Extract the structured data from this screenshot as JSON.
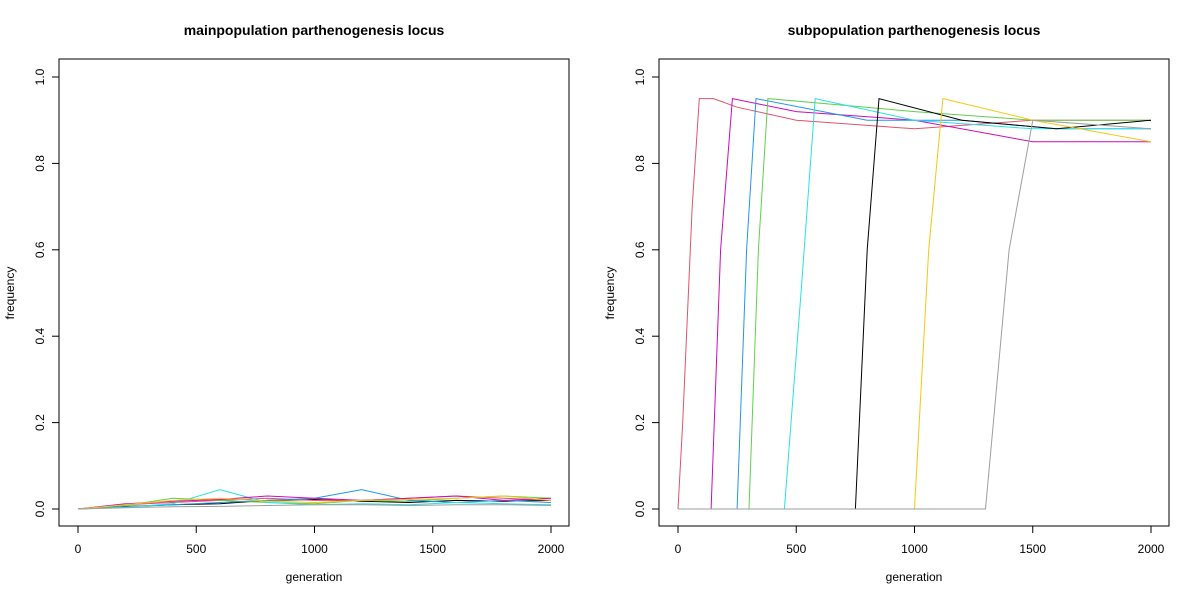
{
  "chart_data": [
    {
      "type": "line",
      "title": "mainpopulation parthenogenesis locus",
      "xlabel": "generation",
      "ylabel": "frequency",
      "xlim": [
        0,
        2000
      ],
      "ylim": [
        0,
        1
      ],
      "xticks": [
        "0",
        "500",
        "1000",
        "1500",
        "2000"
      ],
      "yticks": [
        "0.0",
        "0.2",
        "0.4",
        "0.6",
        "0.8",
        "1.0"
      ],
      "grid": false,
      "legend": "none",
      "series_colors": [
        "#000000",
        "#DF536B",
        "#61D04F",
        "#2297E6",
        "#28E2E5",
        "#CD0BBC",
        "#F5C710",
        "#9E9E9E"
      ],
      "series": [
        {
          "color": "#000000",
          "x": [
            0,
            200,
            400,
            600,
            800,
            1000,
            1200,
            1400,
            1600,
            1800,
            2000
          ],
          "values": [
            0,
            0.006,
            0.01,
            0.012,
            0.02,
            0.022,
            0.018,
            0.015,
            0.02,
            0.018,
            0.02
          ]
        },
        {
          "color": "#DF536B",
          "x": [
            0,
            200,
            400,
            600,
            800,
            1000,
            1200,
            1400,
            1600,
            1800,
            2000
          ],
          "values": [
            0,
            0.01,
            0.015,
            0.02,
            0.025,
            0.02,
            0.02,
            0.025,
            0.03,
            0.025,
            0.02
          ]
        },
        {
          "color": "#61D04F",
          "x": [
            0,
            200,
            400,
            600,
            800,
            1000,
            1200,
            1400,
            1600,
            1800,
            2000
          ],
          "values": [
            0,
            0.008,
            0.025,
            0.02,
            0.015,
            0.012,
            0.02,
            0.018,
            0.025,
            0.03,
            0.025
          ]
        },
        {
          "color": "#2297E6",
          "x": [
            0,
            200,
            400,
            600,
            800,
            1000,
            1200,
            1400,
            1600,
            1800,
            2000
          ],
          "values": [
            0,
            0.005,
            0.01,
            0.015,
            0.02,
            0.025,
            0.045,
            0.02,
            0.015,
            0.02,
            0.015
          ]
        },
        {
          "color": "#28E2E5",
          "x": [
            0,
            200,
            400,
            600,
            800,
            1000,
            1200,
            1400,
            1600,
            1800,
            2000
          ],
          "values": [
            0,
            0.004,
            0.012,
            0.045,
            0.015,
            0.01,
            0.012,
            0.01,
            0.015,
            0.012,
            0.01
          ]
        },
        {
          "color": "#CD0BBC",
          "x": [
            0,
            200,
            400,
            600,
            800,
            1000,
            1200,
            1400,
            1600,
            1800,
            2000
          ],
          "values": [
            0,
            0.012,
            0.018,
            0.022,
            0.03,
            0.025,
            0.02,
            0.025,
            0.03,
            0.02,
            0.025
          ]
        },
        {
          "color": "#F5C710",
          "x": [
            0,
            200,
            400,
            600,
            800,
            1000,
            1200,
            1400,
            1600,
            1800,
            2000
          ],
          "values": [
            0,
            0.01,
            0.02,
            0.025,
            0.018,
            0.015,
            0.02,
            0.022,
            0.025,
            0.03,
            0.02
          ]
        },
        {
          "color": "#9E9E9E",
          "x": [
            0,
            200,
            400,
            600,
            800,
            1000,
            1200,
            1400,
            1600,
            1800,
            2000
          ],
          "values": [
            0,
            0.003,
            0.005,
            0.006,
            0.008,
            0.01,
            0.01,
            0.008,
            0.01,
            0.01,
            0.008
          ]
        }
      ]
    },
    {
      "type": "line",
      "title": "subpopulation parthenogenesis locus",
      "xlabel": "generation",
      "ylabel": "frequency",
      "xlim": [
        0,
        2000
      ],
      "ylim": [
        0,
        1
      ],
      "xticks": [
        "0",
        "500",
        "1000",
        "1500",
        "2000"
      ],
      "yticks": [
        "0.0",
        "0.2",
        "0.4",
        "0.6",
        "0.8",
        "1.0"
      ],
      "grid": false,
      "legend": "none",
      "series_colors": [
        "#000000",
        "#DF536B",
        "#61D04F",
        "#2297E6",
        "#28E2E5",
        "#CD0BBC",
        "#F5C710",
        "#9E9E9E"
      ],
      "series": [
        {
          "color": "#DF536B",
          "x": [
            0,
            20,
            60,
            90,
            150,
            250,
            500,
            1000,
            1500,
            2000
          ],
          "values": [
            0,
            0.2,
            0.7,
            0.95,
            0.95,
            0.93,
            0.9,
            0.88,
            0.9,
            0.9
          ]
        },
        {
          "color": "#CD0BBC",
          "x": [
            0,
            140,
            180,
            230,
            500,
            1000,
            1500,
            2000
          ],
          "values": [
            0,
            0,
            0.6,
            0.95,
            0.92,
            0.9,
            0.85,
            0.85
          ]
        },
        {
          "color": "#2297E6",
          "x": [
            0,
            250,
            290,
            330,
            800,
            1200,
            1600,
            2000
          ],
          "values": [
            0,
            0,
            0.6,
            0.95,
            0.9,
            0.9,
            0.88,
            0.88
          ]
        },
        {
          "color": "#61D04F",
          "x": [
            0,
            300,
            340,
            380,
            1000,
            1500,
            2000
          ],
          "values": [
            0,
            0,
            0.6,
            0.95,
            0.92,
            0.9,
            0.9
          ]
        },
        {
          "color": "#28E2E5",
          "x": [
            0,
            450,
            520,
            580,
            1000,
            1500,
            2000
          ],
          "values": [
            0,
            0,
            0.5,
            0.95,
            0.9,
            0.88,
            0.88
          ]
        },
        {
          "color": "#000000",
          "x": [
            0,
            750,
            800,
            850,
            1200,
            1600,
            2000
          ],
          "values": [
            0,
            0,
            0.6,
            0.95,
            0.9,
            0.88,
            0.9
          ]
        },
        {
          "color": "#F5C710",
          "x": [
            0,
            1000,
            1060,
            1120,
            1500,
            2000
          ],
          "values": [
            0,
            0,
            0.6,
            0.95,
            0.9,
            0.85
          ]
        },
        {
          "color": "#9E9E9E",
          "x": [
            0,
            1300,
            1400,
            1500,
            2000
          ],
          "values": [
            0,
            0,
            0.6,
            0.9,
            0.88
          ]
        }
      ]
    }
  ]
}
